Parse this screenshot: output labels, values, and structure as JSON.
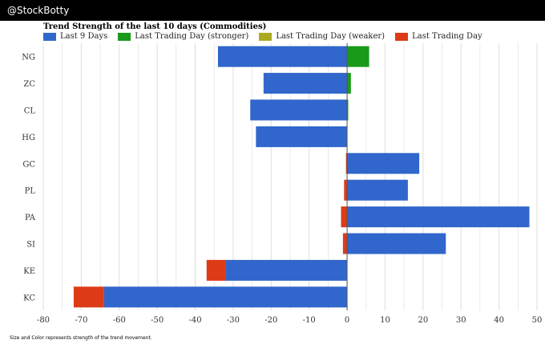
{
  "header": {
    "brand": "@StockBotty"
  },
  "footer": {
    "note": "Size and Color represents strength of the trend movement."
  },
  "colors": {
    "last9": "#3166cc",
    "stronger": "#1a9a1a",
    "weaker": "#aaaa22",
    "last": "#dd3b17",
    "grid": "#dddddd"
  },
  "chart_data": {
    "type": "bar",
    "orientation": "horizontal",
    "stacked": true,
    "title": "Trend Strength of the last 10 days (Commodities)",
    "legend_position": "top-left",
    "grid": true,
    "xlim": [
      -80,
      50
    ],
    "xticks": [
      "-80",
      "-70",
      "-60",
      "-50",
      "-40",
      "-30",
      "-20",
      "-10",
      "0",
      "10",
      "20",
      "30",
      "40",
      "50"
    ],
    "categories": [
      "NG",
      "ZC",
      "CL",
      "HG",
      "GC",
      "PL",
      "PA",
      "SI",
      "KE",
      "KC"
    ],
    "series": [
      {
        "name": "Last 9 Days",
        "color": "#3166cc",
        "segments": [
          [
            -34,
            0
          ],
          [
            -22,
            0
          ],
          [
            -25.5,
            0
          ],
          [
            -24,
            0
          ],
          [
            0,
            19
          ],
          [
            0,
            16
          ],
          [
            0,
            48
          ],
          [
            0,
            26
          ],
          [
            -32,
            0
          ],
          [
            -64,
            0
          ]
        ]
      },
      {
        "name": "Last Trading Day (stronger)",
        "color": "#1a9a1a",
        "segments": [
          [
            0,
            5.8
          ],
          [
            0,
            1
          ],
          [
            0,
            0.3
          ],
          null,
          null,
          null,
          null,
          null,
          null,
          null
        ]
      },
      {
        "name": "Last Trading Day (weaker)",
        "color": "#aaaa22",
        "segments": [
          null,
          null,
          null,
          null,
          null,
          null,
          null,
          null,
          null,
          null
        ]
      },
      {
        "name": "Last Trading Day",
        "color": "#dd3b17",
        "segments": [
          null,
          null,
          null,
          null,
          [
            -0.3,
            0
          ],
          [
            -0.8,
            0
          ],
          [
            -1.6,
            0
          ],
          [
            -1.1,
            0
          ],
          [
            -37,
            -32
          ],
          [
            -72,
            -64
          ]
        ]
      }
    ]
  }
}
